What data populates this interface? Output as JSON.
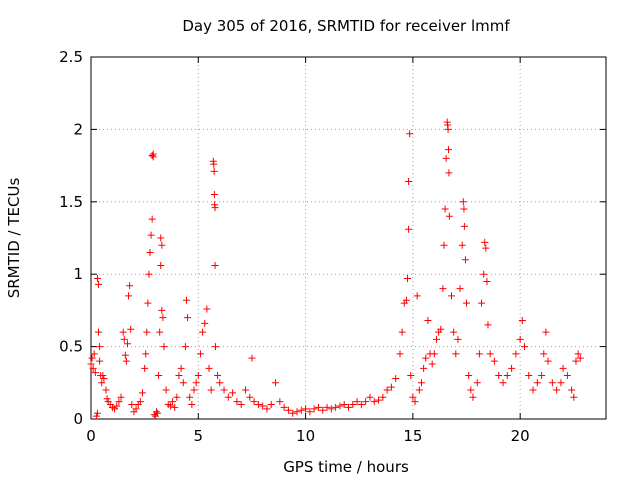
{
  "chart_data": {
    "type": "scatter",
    "title": "Day 305 of 2016, SRMTID for receiver lmmf",
    "xlabel": "GPS time / hours",
    "ylabel": "SRMTID / TECUs",
    "xlim": [
      0,
      24
    ],
    "ylim": [
      0,
      2.5
    ],
    "xticks": [
      0,
      5,
      10,
      15,
      20
    ],
    "yticks": [
      0,
      0.5,
      1,
      1.5,
      2,
      2.5
    ],
    "xtick_labels": [
      "0",
      "5",
      "10",
      "15",
      "20"
    ],
    "ytick_labels": [
      "0",
      "0.5",
      "1",
      "1.5",
      "2",
      "2.5"
    ],
    "grid": true,
    "marker": "+",
    "color": "#ff0000",
    "series": [
      {
        "name": "SRMTID",
        "points": [
          [
            0.0,
            0.38
          ],
          [
            0.05,
            0.42
          ],
          [
            0.1,
            0.35
          ],
          [
            0.15,
            0.45
          ],
          [
            0.2,
            0.32
          ],
          [
            0.25,
            0.02
          ],
          [
            0.3,
            0.04
          ],
          [
            0.3,
            0.97
          ],
          [
            0.35,
            0.93
          ],
          [
            0.35,
            0.6
          ],
          [
            0.4,
            0.5
          ],
          [
            0.4,
            0.4
          ],
          [
            0.45,
            0.3
          ],
          [
            0.5,
            0.25
          ],
          [
            0.55,
            0.3
          ],
          [
            0.6,
            0.28
          ],
          [
            0.7,
            0.2
          ],
          [
            0.75,
            0.14
          ],
          [
            0.8,
            0.12
          ],
          [
            0.9,
            0.1
          ],
          [
            1.0,
            0.08
          ],
          [
            1.1,
            0.07
          ],
          [
            1.2,
            0.09
          ],
          [
            1.3,
            0.12
          ],
          [
            1.4,
            0.15
          ],
          [
            1.5,
            0.6
          ],
          [
            1.55,
            0.55
          ],
          [
            1.6,
            0.44
          ],
          [
            1.65,
            0.4
          ],
          [
            1.7,
            0.52
          ],
          [
            1.75,
            0.85
          ],
          [
            1.8,
            0.92
          ],
          [
            1.85,
            0.62
          ],
          [
            1.9,
            0.1
          ],
          [
            2.0,
            0.05
          ],
          [
            2.1,
            0.07
          ],
          [
            2.2,
            0.1
          ],
          [
            2.3,
            0.12
          ],
          [
            2.4,
            0.18
          ],
          [
            2.5,
            0.35
          ],
          [
            2.55,
            0.45
          ],
          [
            2.6,
            0.6
          ],
          [
            2.65,
            0.8
          ],
          [
            2.7,
            1.0
          ],
          [
            2.75,
            1.15
          ],
          [
            2.8,
            1.27
          ],
          [
            2.85,
            1.38
          ],
          [
            2.85,
            1.82
          ],
          [
            2.9,
            1.83
          ],
          [
            2.9,
            1.81
          ],
          [
            2.95,
            0.03
          ],
          [
            3.0,
            0.02
          ],
          [
            3.05,
            0.05
          ],
          [
            3.1,
            0.04
          ],
          [
            3.15,
            0.3
          ],
          [
            3.2,
            0.6
          ],
          [
            3.25,
            1.06
          ],
          [
            3.25,
            1.25
          ],
          [
            3.3,
            1.2
          ],
          [
            3.3,
            0.75
          ],
          [
            3.35,
            0.7
          ],
          [
            3.4,
            0.5
          ],
          [
            3.5,
            0.2
          ],
          [
            3.6,
            0.1
          ],
          [
            3.7,
            0.09
          ],
          [
            3.8,
            0.12
          ],
          [
            3.9,
            0.08
          ],
          [
            4.0,
            0.15
          ],
          [
            4.1,
            0.3
          ],
          [
            4.2,
            0.35
          ],
          [
            4.3,
            0.25
          ],
          [
            4.4,
            0.5
          ],
          [
            4.45,
            0.82
          ],
          [
            4.5,
            0.7
          ],
          [
            4.6,
            0.15
          ],
          [
            4.7,
            0.1
          ],
          [
            4.8,
            0.2
          ],
          [
            4.9,
            0.25
          ],
          [
            5.0,
            0.3
          ],
          [
            5.1,
            0.45
          ],
          [
            5.2,
            0.6
          ],
          [
            5.3,
            0.66
          ],
          [
            5.4,
            0.76
          ],
          [
            5.5,
            0.35
          ],
          [
            5.6,
            0.2
          ],
          [
            5.7,
            1.78
          ],
          [
            5.72,
            1.76
          ],
          [
            5.74,
            1.71
          ],
          [
            5.75,
            1.55
          ],
          [
            5.76,
            1.48
          ],
          [
            5.78,
            1.46
          ],
          [
            5.78,
            1.06
          ],
          [
            5.8,
            0.5
          ],
          [
            5.9,
            0.3
          ],
          [
            6.0,
            0.25
          ],
          [
            6.2,
            0.2
          ],
          [
            6.4,
            0.15
          ],
          [
            6.6,
            0.18
          ],
          [
            6.8,
            0.12
          ],
          [
            7.0,
            0.1
          ],
          [
            7.2,
            0.2
          ],
          [
            7.4,
            0.15
          ],
          [
            7.5,
            0.42
          ],
          [
            7.6,
            0.12
          ],
          [
            7.8,
            0.1
          ],
          [
            8.0,
            0.09
          ],
          [
            8.2,
            0.07
          ],
          [
            8.4,
            0.1
          ],
          [
            8.6,
            0.25
          ],
          [
            8.8,
            0.12
          ],
          [
            9.0,
            0.08
          ],
          [
            9.2,
            0.06
          ],
          [
            9.4,
            0.04
          ],
          [
            9.6,
            0.05
          ],
          [
            9.8,
            0.06
          ],
          [
            10.0,
            0.07
          ],
          [
            10.2,
            0.05
          ],
          [
            10.4,
            0.07
          ],
          [
            10.6,
            0.08
          ],
          [
            10.8,
            0.06
          ],
          [
            11.0,
            0.08
          ],
          [
            11.2,
            0.07
          ],
          [
            11.4,
            0.08
          ],
          [
            11.6,
            0.09
          ],
          [
            11.8,
            0.1
          ],
          [
            12.0,
            0.08
          ],
          [
            12.2,
            0.1
          ],
          [
            12.4,
            0.12
          ],
          [
            12.6,
            0.1
          ],
          [
            12.8,
            0.12
          ],
          [
            13.0,
            0.15
          ],
          [
            13.2,
            0.12
          ],
          [
            13.4,
            0.13
          ],
          [
            13.6,
            0.15
          ],
          [
            13.8,
            0.2
          ],
          [
            14.0,
            0.22
          ],
          [
            14.2,
            0.28
          ],
          [
            14.4,
            0.45
          ],
          [
            14.5,
            0.6
          ],
          [
            14.6,
            0.8
          ],
          [
            14.7,
            0.82
          ],
          [
            14.75,
            0.97
          ],
          [
            14.8,
            1.31
          ],
          [
            14.8,
            1.64
          ],
          [
            14.85,
            1.97
          ],
          [
            14.9,
            0.3
          ],
          [
            15.0,
            0.15
          ],
          [
            15.1,
            0.12
          ],
          [
            15.2,
            0.85
          ],
          [
            15.3,
            0.2
          ],
          [
            15.4,
            0.25
          ],
          [
            15.5,
            0.35
          ],
          [
            15.6,
            0.42
          ],
          [
            15.7,
            0.68
          ],
          [
            15.8,
            0.45
          ],
          [
            15.9,
            0.38
          ],
          [
            16.0,
            0.45
          ],
          [
            16.1,
            0.55
          ],
          [
            16.2,
            0.6
          ],
          [
            16.3,
            0.62
          ],
          [
            16.4,
            0.9
          ],
          [
            16.45,
            1.2
          ],
          [
            16.5,
            1.45
          ],
          [
            16.55,
            1.8
          ],
          [
            16.6,
            2.05
          ],
          [
            16.62,
            2.03
          ],
          [
            16.64,
            2.0
          ],
          [
            16.66,
            1.86
          ],
          [
            16.68,
            1.7
          ],
          [
            16.7,
            1.4
          ],
          [
            16.8,
            0.85
          ],
          [
            16.9,
            0.6
          ],
          [
            17.0,
            0.45
          ],
          [
            17.1,
            0.55
          ],
          [
            17.2,
            0.9
          ],
          [
            17.3,
            1.2
          ],
          [
            17.35,
            1.5
          ],
          [
            17.38,
            1.45
          ],
          [
            17.4,
            1.33
          ],
          [
            17.45,
            1.1
          ],
          [
            17.5,
            0.8
          ],
          [
            17.6,
            0.3
          ],
          [
            17.7,
            0.2
          ],
          [
            17.8,
            0.15
          ],
          [
            18.0,
            0.25
          ],
          [
            18.1,
            0.45
          ],
          [
            18.2,
            0.8
          ],
          [
            18.3,
            1.0
          ],
          [
            18.35,
            1.22
          ],
          [
            18.4,
            1.18
          ],
          [
            18.45,
            0.95
          ],
          [
            18.5,
            0.65
          ],
          [
            18.6,
            0.45
          ],
          [
            18.8,
            0.4
          ],
          [
            19.0,
            0.3
          ],
          [
            19.2,
            0.25
          ],
          [
            19.4,
            0.3
          ],
          [
            19.6,
            0.35
          ],
          [
            19.8,
            0.45
          ],
          [
            20.0,
            0.55
          ],
          [
            20.1,
            0.68
          ],
          [
            20.2,
            0.5
          ],
          [
            20.4,
            0.3
          ],
          [
            20.6,
            0.2
          ],
          [
            20.8,
            0.25
          ],
          [
            21.0,
            0.3
          ],
          [
            21.1,
            0.45
          ],
          [
            21.2,
            0.6
          ],
          [
            21.3,
            0.4
          ],
          [
            21.5,
            0.25
          ],
          [
            21.7,
            0.2
          ],
          [
            21.9,
            0.25
          ],
          [
            22.0,
            0.35
          ],
          [
            22.2,
            0.3
          ],
          [
            22.4,
            0.2
          ],
          [
            22.5,
            0.15
          ],
          [
            22.6,
            0.4
          ],
          [
            22.7,
            0.45
          ],
          [
            22.8,
            0.42
          ]
        ]
      }
    ]
  }
}
